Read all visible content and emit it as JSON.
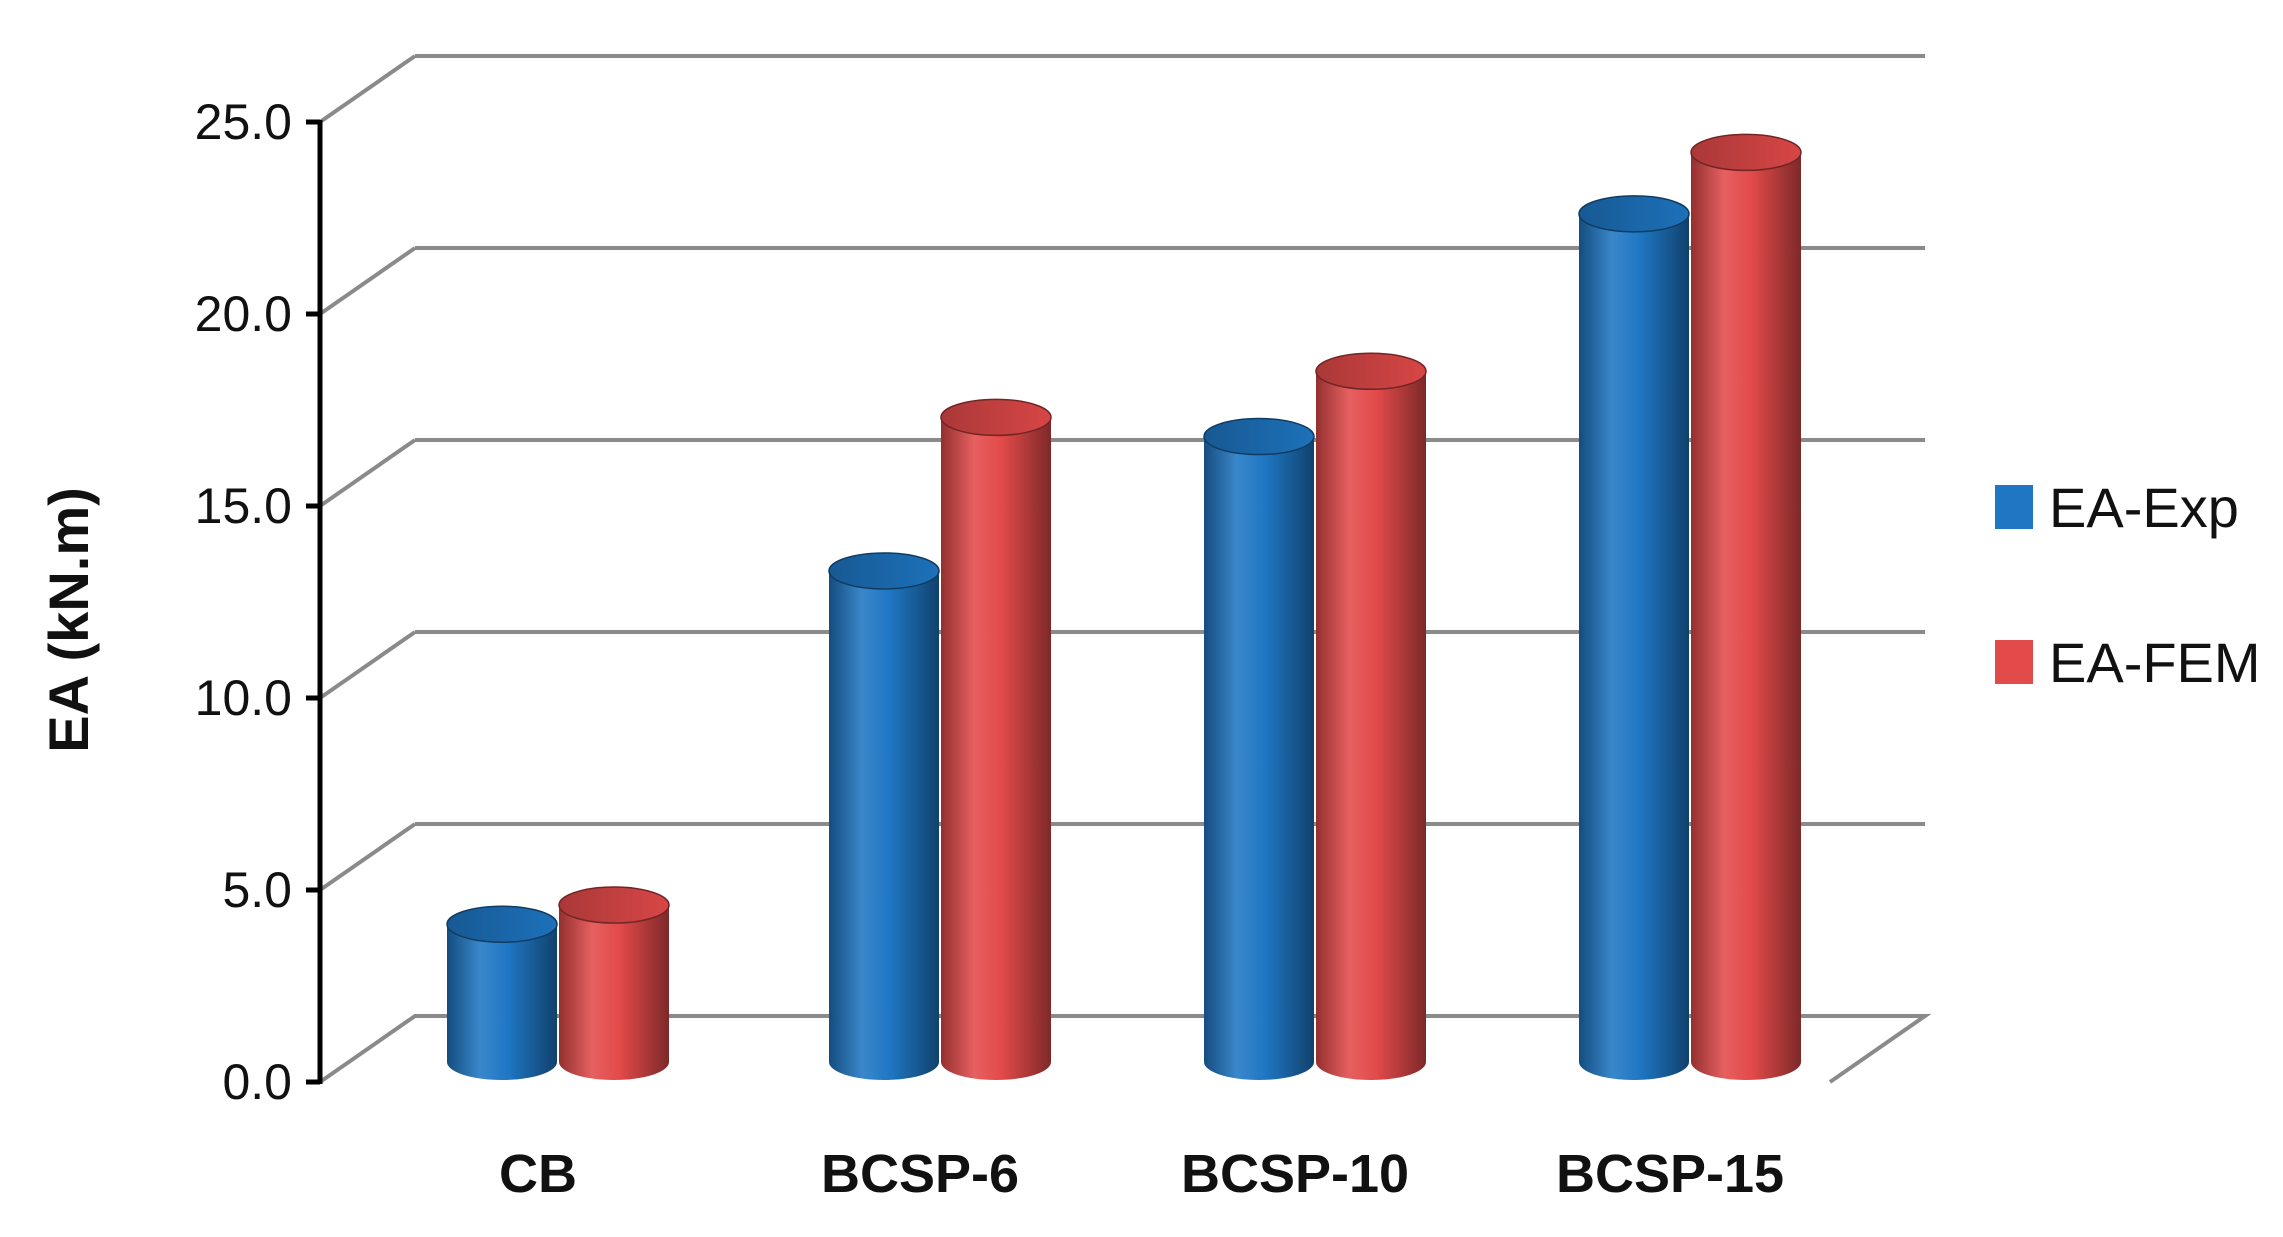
{
  "chart_data": {
    "type": "bar",
    "style": "3d-cylinder",
    "categories": [
      "CB",
      "BCSP-6",
      "BCSP-10",
      "BCSP-15"
    ],
    "series": [
      {
        "name": "EA-Exp",
        "values": [
          3.9,
          13.1,
          16.6,
          22.4
        ],
        "color": "#1f77c4"
      },
      {
        "name": "EA-FEM",
        "values": [
          4.4,
          17.1,
          18.3,
          24.0
        ],
        "color": "#e34a4a"
      }
    ],
    "xlabel": "",
    "ylabel": "EA (kN.m)",
    "ylim": [
      0,
      25
    ],
    "yticks": [
      "0.0",
      "5.0",
      "10.0",
      "15.0",
      "20.0",
      "25.0"
    ],
    "grid": true,
    "legend_position": "right"
  }
}
